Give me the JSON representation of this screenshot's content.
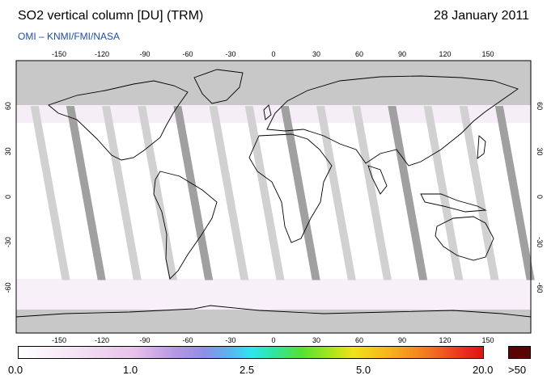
{
  "header": {
    "title": "SO2 vertical column [DU] (TRM)",
    "date": "28 January 2011",
    "subtitle": "OMI  –  KNMI/FMI/NASA"
  },
  "map": {
    "lon_ticks": [
      "-150",
      "-120",
      "-90",
      "-60",
      "-30",
      "0",
      "30",
      "60",
      "90",
      "120",
      "150"
    ],
    "lat_ticks": [
      "60",
      "30",
      "0",
      "-30",
      "-60"
    ],
    "lon_range": [
      -180,
      180
    ],
    "lat_range": [
      -90,
      90
    ],
    "colors": {
      "no_data": "#c8c8c8",
      "land_no_data": "#9b9b9b",
      "coast": "#000000"
    }
  },
  "colorbar": {
    "labels": [
      "0.0",
      "1.0",
      "2.5",
      "5.0",
      "20.0"
    ],
    "over_label": ">50",
    "over_color": "#5b0303"
  }
}
